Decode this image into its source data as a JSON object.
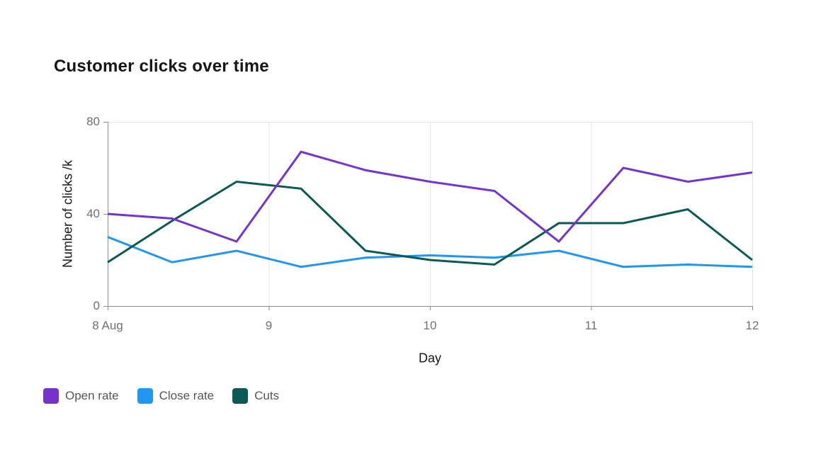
{
  "chart_data": {
    "type": "line",
    "title": "Customer clicks over time",
    "xlabel": "Day",
    "ylabel": "Number of clicks /k",
    "x_domain": [
      8,
      12
    ],
    "ylim": [
      0,
      80
    ],
    "x": [
      8,
      8.4,
      8.8,
      9.2,
      9.6,
      10,
      10.4,
      10.8,
      11.2,
      11.6,
      12
    ],
    "series": [
      {
        "name": "Open rate",
        "color": "#7434CC",
        "values": [
          40,
          38,
          28,
          67,
          59,
          54,
          50,
          28,
          60,
          54,
          58
        ]
      },
      {
        "name": "Close rate",
        "color": "#2095F2",
        "values": [
          30,
          19,
          24,
          17,
          21,
          22,
          21,
          24,
          17,
          18,
          17
        ]
      },
      {
        "name": "Cuts",
        "color": "#0B5955",
        "values": [
          19,
          37,
          54,
          51,
          24,
          20,
          18,
          36,
          36,
          42,
          20
        ]
      }
    ],
    "xticks": [
      {
        "label": "8 Aug",
        "day": 8
      },
      {
        "label": "9",
        "day": 9
      },
      {
        "label": "10",
        "day": 10
      },
      {
        "label": "11",
        "day": 11
      },
      {
        "label": "12",
        "day": 12
      }
    ],
    "yticks": [
      {
        "label": "0",
        "value": 0
      },
      {
        "label": "40",
        "value": 40
      },
      {
        "label": "80",
        "value": 80
      }
    ],
    "grid": {
      "h_values": [
        80
      ],
      "v_days": [
        9,
        10,
        11,
        12
      ],
      "color": "#e5e5e5"
    },
    "axis_color": "#8d8d8d",
    "tick_label_color": "#6f6f6f",
    "legend_position": "bottom-left",
    "line_width": 3
  }
}
